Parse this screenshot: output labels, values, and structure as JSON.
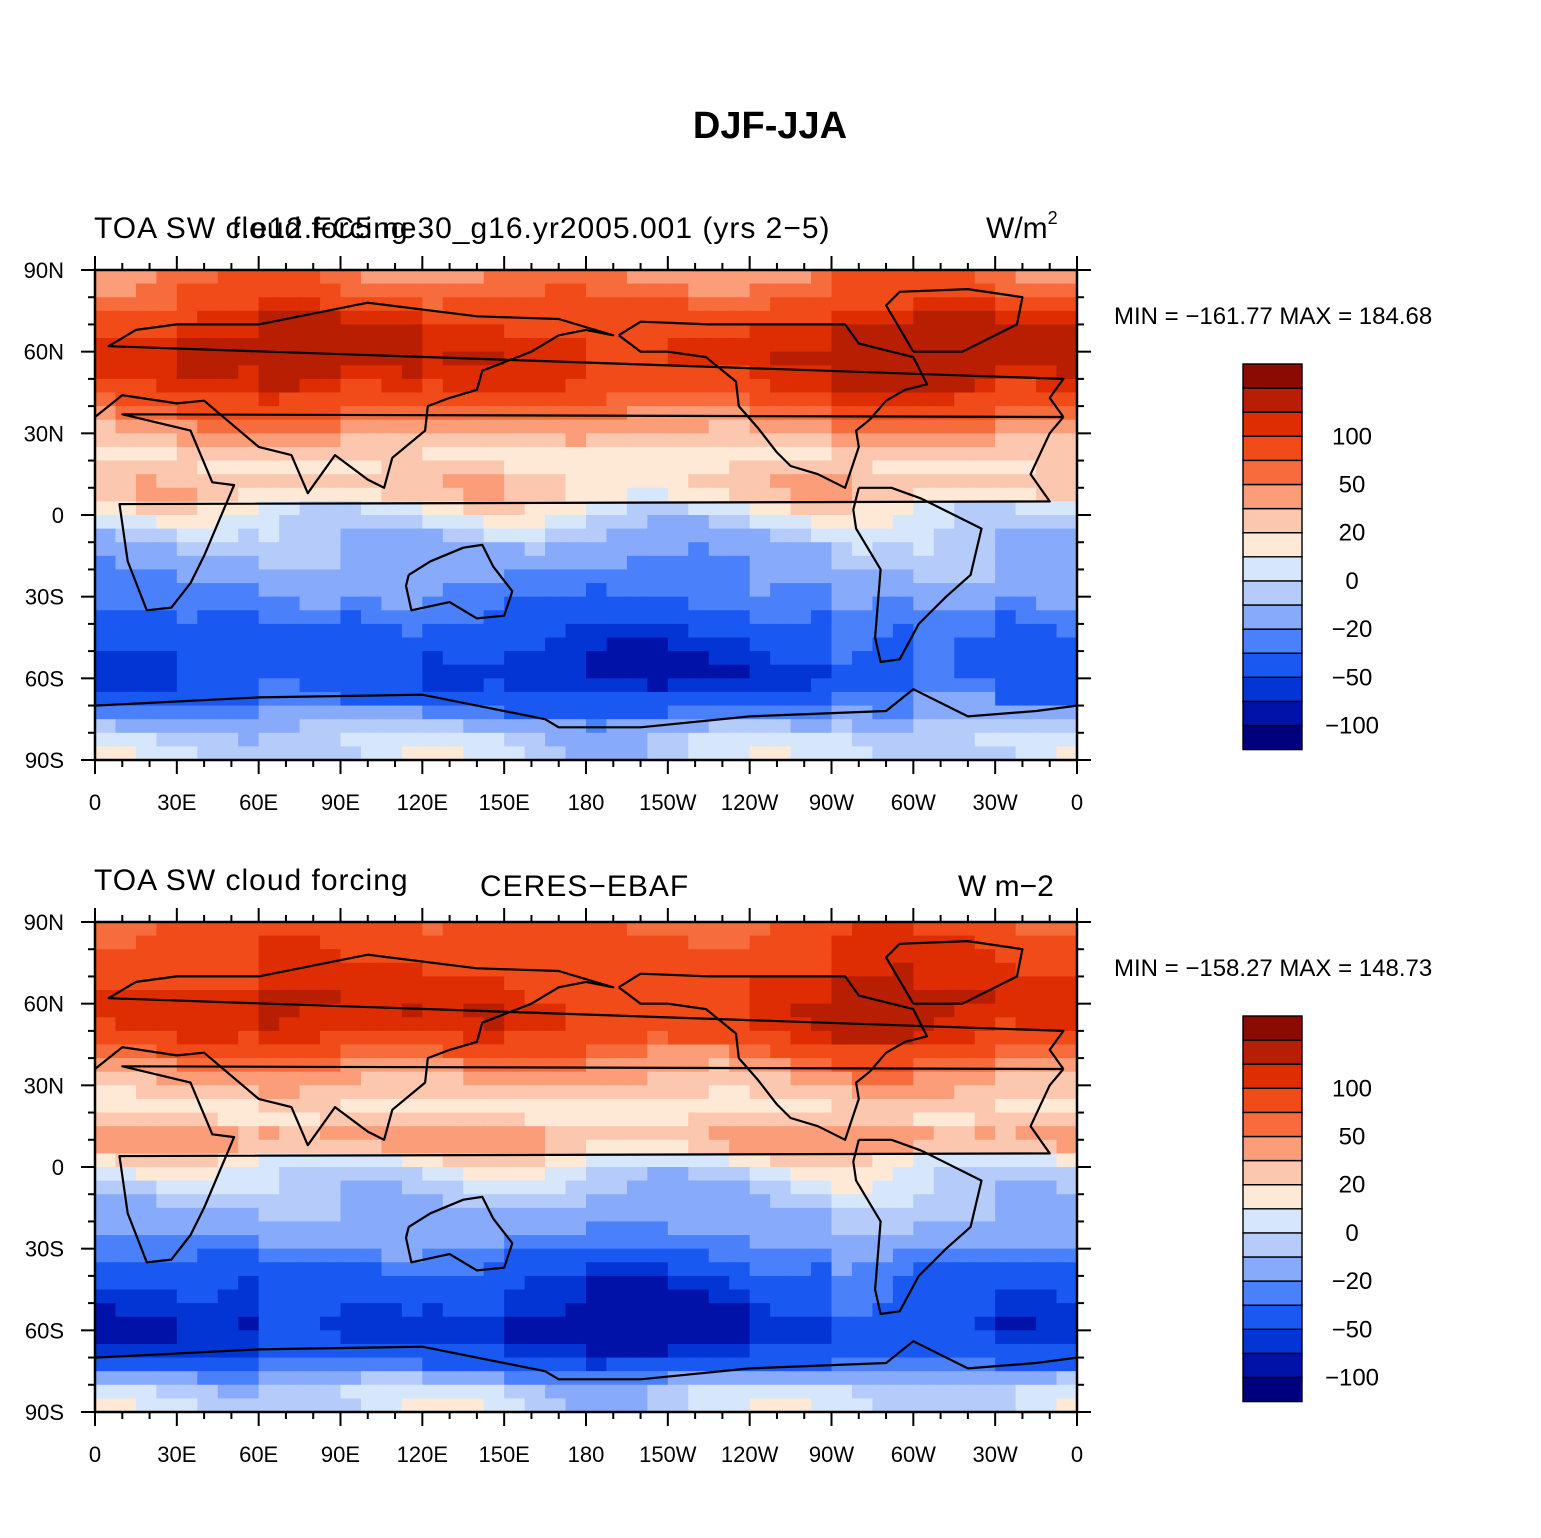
{
  "figure_title": "DJF-JJA",
  "lon_labels": [
    "0",
    "30E",
    "60E",
    "90E",
    "120E",
    "150E",
    "180",
    "150W",
    "120W",
    "90W",
    "60W",
    "30W",
    "0"
  ],
  "lat_labels": [
    "90N",
    "60N",
    "30N",
    "0",
    "30S",
    "60S",
    "90S"
  ],
  "palette": [
    "#00007f",
    "#0012a8",
    "#0335d5",
    "#1a58f2",
    "#4a80fa",
    "#87aafa",
    "#b5ccfa",
    "#d6e6fb",
    "#fee9d7",
    "#fcc7af",
    "#fa9d78",
    "#f76c3c",
    "#f04b18",
    "#de2c03",
    "#b71e02",
    "#8b0a02"
  ],
  "colorbar_labels": [
    {
      "text": "100",
      "boundary": 13
    },
    {
      "text": "50",
      "boundary": 11
    },
    {
      "text": "20",
      "boundary": 9
    },
    {
      "text": "0",
      "boundary": 7
    },
    {
      "text": "−20",
      "boundary": 5
    },
    {
      "text": "−50",
      "boundary": 3
    },
    {
      "text": "−100",
      "boundary": 1
    }
  ],
  "panels": [
    {
      "left_title": "TOA SW cloud forcing",
      "center_title": "f.e12.FC5.ne30_g16.yr2005.001 (yrs 2−5)",
      "units": "W/m",
      "units_sup": "2",
      "minmax": "MIN = −161.77  MAX = 184.68",
      "field": {
        "lats": [
          90,
          80,
          70,
          60,
          50,
          40,
          30,
          20,
          10,
          0,
          -10,
          -20,
          -30,
          -40,
          -50,
          -60,
          -70,
          -80,
          -90
        ],
        "lon_profile": [
          0,
          0.2,
          0.5,
          0.3,
          0.1,
          0,
          -0.1,
          0,
          0.1,
          0.4,
          0.6,
          0.3
        ],
        "values": [
          30,
          45,
          75,
          90,
          80,
          45,
          20,
          5,
          15,
          -5,
          -25,
          -35,
          -45,
          -70,
          -90,
          -100,
          -60,
          -15,
          -10
        ]
      }
    },
    {
      "left_title": "TOA SW cloud forcing",
      "center_title": "CERES−EBAF",
      "units": "W m−2",
      "units_sup": "",
      "minmax": "MIN = −158.27  MAX = 148.73",
      "field": {
        "lats": [
          90,
          80,
          70,
          60,
          50,
          40,
          30,
          20,
          10,
          0,
          -10,
          -20,
          -30,
          -40,
          -50,
          -60,
          -70,
          -80,
          -90
        ],
        "lon_profile": [
          0,
          0.1,
          0.4,
          0.3,
          0.2,
          0,
          -0.1,
          0,
          0.2,
          0.5,
          0.4,
          0.2
        ],
        "values": [
          45,
          60,
          70,
          80,
          75,
          35,
          15,
          5,
          25,
          -5,
          -20,
          -30,
          -45,
          -80,
          -100,
          -120,
          -90,
          -15,
          -10
        ]
      }
    }
  ]
}
